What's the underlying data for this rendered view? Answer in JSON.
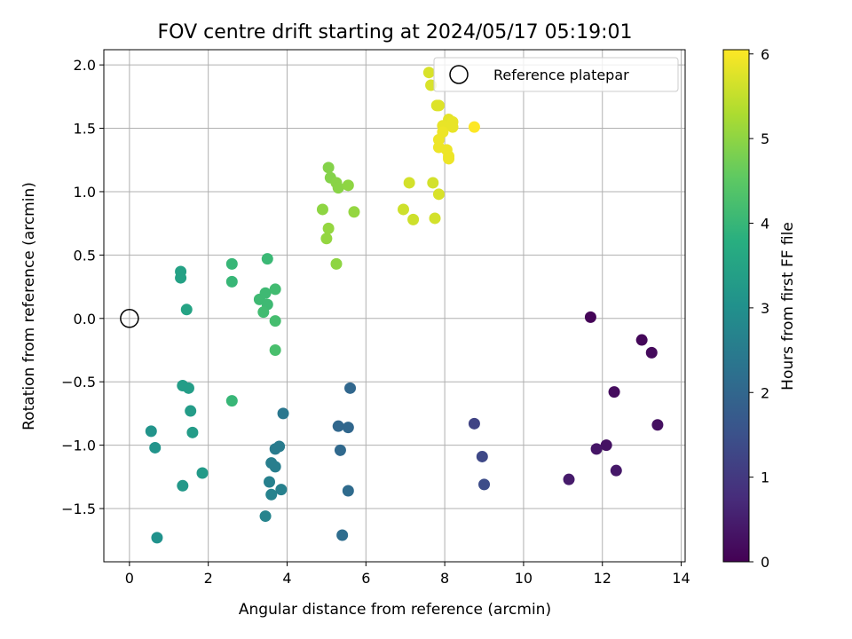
{
  "chart_data": {
    "type": "scatter",
    "title": "FOV centre drift starting at 2024/05/17 05:19:01",
    "xlabel": "Angular distance from reference (arcmin)",
    "ylabel": "Rotation from reference (arcmin)",
    "colorbar_label": "Hours from first FF file",
    "xlim": [
      -0.65,
      14.1
    ],
    "ylim": [
      -1.92,
      2.12
    ],
    "xticks": [
      0,
      2,
      4,
      6,
      8,
      10,
      12,
      14
    ],
    "yticks": [
      -1.5,
      -1.0,
      -0.5,
      0.0,
      0.5,
      1.0,
      1.5,
      2.0
    ],
    "ytick_labels": [
      "−1.5",
      "−1.0",
      "−0.5",
      "0.0",
      "0.5",
      "1.0",
      "1.5",
      "2.0"
    ],
    "cticks": [
      0,
      1,
      2,
      3,
      4,
      5,
      6
    ],
    "clim": [
      0,
      6.05
    ],
    "grid": true,
    "colormap": "viridis",
    "legend": {
      "label": "Reference platepar",
      "location": "top-right"
    },
    "reference_point": {
      "x": 0,
      "y": 0
    },
    "points": [
      {
        "x": 11.7,
        "y": 0.01,
        "c": 0.05
      },
      {
        "x": 13.0,
        "y": -0.17,
        "c": 0.1
      },
      {
        "x": 13.25,
        "y": -0.27,
        "c": 0.15
      },
      {
        "x": 12.3,
        "y": -0.58,
        "c": 0.2
      },
      {
        "x": 13.4,
        "y": -0.84,
        "c": 0.25
      },
      {
        "x": 12.1,
        "y": -1.0,
        "c": 0.3
      },
      {
        "x": 11.85,
        "y": -1.03,
        "c": 0.35
      },
      {
        "x": 12.35,
        "y": -1.2,
        "c": 0.4
      },
      {
        "x": 11.15,
        "y": -1.27,
        "c": 0.45
      },
      {
        "x": 8.75,
        "y": -0.83,
        "c": 1.2
      },
      {
        "x": 8.95,
        "y": -1.09,
        "c": 1.3
      },
      {
        "x": 9.0,
        "y": -1.31,
        "c": 1.4
      },
      {
        "x": 5.6,
        "y": -0.55,
        "c": 2.0
      },
      {
        "x": 5.3,
        "y": -0.85,
        "c": 2.0
      },
      {
        "x": 5.55,
        "y": -0.86,
        "c": 2.0
      },
      {
        "x": 5.35,
        "y": -1.04,
        "c": 2.05
      },
      {
        "x": 5.55,
        "y": -1.36,
        "c": 2.1
      },
      {
        "x": 5.4,
        "y": -1.71,
        "c": 2.15
      },
      {
        "x": 3.9,
        "y": -0.75,
        "c": 2.4
      },
      {
        "x": 3.8,
        "y": -1.01,
        "c": 2.5
      },
      {
        "x": 3.7,
        "y": -1.03,
        "c": 2.5
      },
      {
        "x": 3.6,
        "y": -1.14,
        "c": 2.55
      },
      {
        "x": 3.7,
        "y": -1.17,
        "c": 2.55
      },
      {
        "x": 3.55,
        "y": -1.29,
        "c": 2.6
      },
      {
        "x": 3.85,
        "y": -1.35,
        "c": 2.6
      },
      {
        "x": 3.6,
        "y": -1.39,
        "c": 2.65
      },
      {
        "x": 3.45,
        "y": -1.56,
        "c": 2.7
      },
      {
        "x": 0.55,
        "y": -0.89,
        "c": 3.1
      },
      {
        "x": 0.65,
        "y": -1.02,
        "c": 3.1
      },
      {
        "x": 0.7,
        "y": -1.73,
        "c": 3.05
      },
      {
        "x": 1.35,
        "y": -1.32,
        "c": 3.2
      },
      {
        "x": 1.85,
        "y": -1.22,
        "c": 3.25
      },
      {
        "x": 1.55,
        "y": -0.73,
        "c": 3.3
      },
      {
        "x": 1.6,
        "y": -0.9,
        "c": 3.3
      },
      {
        "x": 1.35,
        "y": -0.53,
        "c": 3.35
      },
      {
        "x": 1.5,
        "y": -0.55,
        "c": 3.35
      },
      {
        "x": 1.3,
        "y": 0.37,
        "c": 3.45
      },
      {
        "x": 1.3,
        "y": 0.32,
        "c": 3.45
      },
      {
        "x": 1.45,
        "y": 0.07,
        "c": 3.5
      },
      {
        "x": 2.6,
        "y": -0.65,
        "c": 4.0
      },
      {
        "x": 2.6,
        "y": 0.43,
        "c": 4.0
      },
      {
        "x": 2.6,
        "y": 0.29,
        "c": 4.0
      },
      {
        "x": 3.5,
        "y": 0.47,
        "c": 4.05
      },
      {
        "x": 3.3,
        "y": 0.15,
        "c": 4.1
      },
      {
        "x": 3.45,
        "y": 0.2,
        "c": 4.1
      },
      {
        "x": 3.5,
        "y": 0.11,
        "c": 4.1
      },
      {
        "x": 3.4,
        "y": 0.05,
        "c": 4.15
      },
      {
        "x": 3.7,
        "y": 0.23,
        "c": 4.15
      },
      {
        "x": 3.7,
        "y": -0.02,
        "c": 4.2
      },
      {
        "x": 3.7,
        "y": -0.25,
        "c": 4.25
      },
      {
        "x": 5.05,
        "y": 1.19,
        "c": 4.9
      },
      {
        "x": 5.1,
        "y": 1.11,
        "c": 4.9
      },
      {
        "x": 5.25,
        "y": 1.07,
        "c": 4.95
      },
      {
        "x": 5.3,
        "y": 1.03,
        "c": 4.95
      },
      {
        "x": 5.55,
        "y": 1.05,
        "c": 5.0
      },
      {
        "x": 4.9,
        "y": 0.86,
        "c": 5.0
      },
      {
        "x": 5.05,
        "y": 0.71,
        "c": 5.05
      },
      {
        "x": 5.0,
        "y": 0.63,
        "c": 5.05
      },
      {
        "x": 5.7,
        "y": 0.84,
        "c": 5.05
      },
      {
        "x": 5.25,
        "y": 0.43,
        "c": 5.0
      },
      {
        "x": 7.6,
        "y": 1.94,
        "c": 5.7
      },
      {
        "x": 7.65,
        "y": 1.84,
        "c": 5.7
      },
      {
        "x": 7.8,
        "y": 1.68,
        "c": 5.75
      },
      {
        "x": 7.85,
        "y": 1.68,
        "c": 5.75
      },
      {
        "x": 8.1,
        "y": 1.57,
        "c": 5.8
      },
      {
        "x": 8.2,
        "y": 1.55,
        "c": 5.85
      },
      {
        "x": 7.95,
        "y": 1.52,
        "c": 5.85
      },
      {
        "x": 8.2,
        "y": 1.51,
        "c": 5.85
      },
      {
        "x": 7.95,
        "y": 1.47,
        "c": 5.9
      },
      {
        "x": 8.75,
        "y": 1.51,
        "c": 6.05
      },
      {
        "x": 7.85,
        "y": 1.41,
        "c": 5.9
      },
      {
        "x": 7.85,
        "y": 1.35,
        "c": 5.9
      },
      {
        "x": 8.05,
        "y": 1.33,
        "c": 5.9
      },
      {
        "x": 8.1,
        "y": 1.28,
        "c": 5.9
      },
      {
        "x": 8.1,
        "y": 1.26,
        "c": 5.9
      },
      {
        "x": 7.1,
        "y": 1.07,
        "c": 5.65
      },
      {
        "x": 7.7,
        "y": 1.07,
        "c": 5.65
      },
      {
        "x": 7.85,
        "y": 0.98,
        "c": 5.7
      },
      {
        "x": 6.95,
        "y": 0.86,
        "c": 5.6
      },
      {
        "x": 7.2,
        "y": 0.78,
        "c": 5.6
      },
      {
        "x": 7.75,
        "y": 0.79,
        "c": 5.65
      }
    ]
  }
}
